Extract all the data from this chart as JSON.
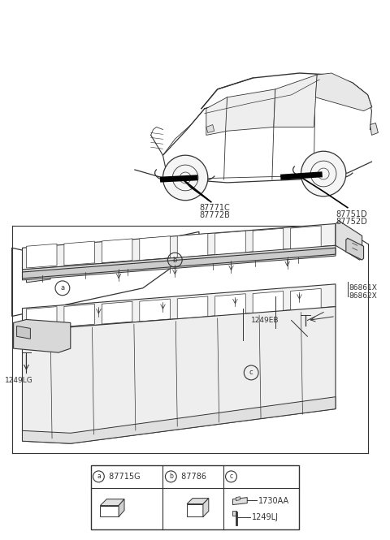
{
  "bg_color": "#ffffff",
  "line_color": "#333333",
  "light_gray": "#d8d8d8",
  "mid_gray": "#aaaaaa",
  "fig_w": 4.8,
  "fig_h": 6.65,
  "dpi": 100,
  "car_label_left": [
    "87771C",
    "87772B"
  ],
  "car_label_right": [
    "87751D",
    "87752D"
  ],
  "part_label_1249LG": "1249LG",
  "part_label_1249EB": "1249EB",
  "part_label_86861X": "86861X",
  "part_label_86862X": "86862X",
  "legend_a_code": "87715G",
  "legend_b_code": "87786",
  "legend_c1": "1730AA",
  "legend_c2": "1249LJ"
}
